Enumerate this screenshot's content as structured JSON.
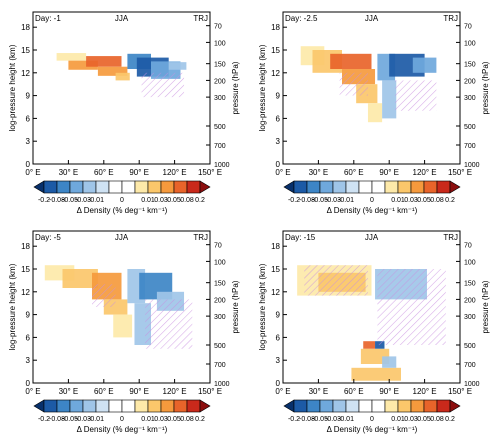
{
  "colorbar": {
    "colors": [
      "#08306b",
      "#1c5aa6",
      "#3d85c6",
      "#6fa8dc",
      "#9fc5e8",
      "#cfe2f3",
      "#ffffff",
      "#ffffff",
      "#fde9a9",
      "#fbc76b",
      "#f59a3d",
      "#e8642a",
      "#c9291b",
      "#8b0e0e"
    ],
    "tick_labels": [
      "-0.2",
      "-0.08",
      "-0.05",
      "-0.03",
      "-0.01",
      "0",
      "0.01",
      "0.03",
      "0.05",
      "0.08",
      "0.2"
    ],
    "label": "Δ Density (% deg⁻¹ km⁻¹)"
  },
  "colors": {
    "hatch": "#c88ee0"
  },
  "chart_data": [
    {
      "type": "heatmap",
      "day_label": "Day: -1",
      "season": "JJA",
      "tag": "TRJ",
      "xlabel": "",
      "ylabel": "log-pressure height (km)",
      "ylabel_right": "pressure (hPa)",
      "xlim": [
        0,
        150
      ],
      "ylim": [
        0,
        20
      ],
      "x_ticks": [
        0,
        30,
        60,
        90,
        120,
        150
      ],
      "x_tick_labels": [
        "0° E",
        "30° E",
        "60° E",
        "90° E",
        "120° E",
        "150° E"
      ],
      "y_ticks": [
        0,
        3,
        6,
        9,
        12,
        15,
        18
      ],
      "y_tick_labels": [
        "0",
        "3",
        "6",
        "9",
        "12",
        "15",
        "18"
      ],
      "p_ticks": [
        0,
        2.5,
        5,
        8.8,
        11,
        13.2,
        16,
        18.2
      ],
      "p_tick_labels": [
        "1000",
        "700",
        "500",
        "300",
        "200",
        "150",
        "100",
        "70"
      ],
      "cells": [
        {
          "x": [
            20,
            45
          ],
          "y": [
            13.6,
            14.6
          ],
          "v": 0.02
        },
        {
          "x": [
            30,
            55
          ],
          "y": [
            12.4,
            13.6
          ],
          "v": 0.05
        },
        {
          "x": [
            45,
            75
          ],
          "y": [
            12.8,
            14.2
          ],
          "v": 0.1
        },
        {
          "x": [
            55,
            80
          ],
          "y": [
            11.6,
            12.8
          ],
          "v": 0.07
        },
        {
          "x": [
            70,
            82
          ],
          "y": [
            11.0,
            12.0
          ],
          "v": 0.03
        },
        {
          "x": [
            80,
            100
          ],
          "y": [
            12.5,
            14.5
          ],
          "v": -0.06
        },
        {
          "x": [
            88,
            115
          ],
          "y": [
            11.5,
            14.0
          ],
          "v": -0.12
        },
        {
          "x": [
            100,
            125
          ],
          "y": [
            11.2,
            13.5
          ],
          "v": -0.05
        },
        {
          "x": [
            115,
            130
          ],
          "y": [
            12.4,
            13.4
          ],
          "v": -0.02
        }
      ],
      "hatch": [
        {
          "x": [
            92,
            128
          ],
          "y": [
            8.8,
            12.0
          ]
        }
      ]
    },
    {
      "type": "heatmap",
      "day_label": "Day: -2.5",
      "season": "JJA",
      "tag": "TRJ",
      "xlabel": "",
      "ylabel": "log-pressure height (km)",
      "ylabel_right": "pressure (hPa)",
      "xlim": [
        0,
        150
      ],
      "ylim": [
        0,
        20
      ],
      "x_ticks": [
        0,
        30,
        60,
        90,
        120,
        150
      ],
      "x_tick_labels": [
        "0° E",
        "30° E",
        "60° E",
        "90° E",
        "120° E",
        "150° E"
      ],
      "y_ticks": [
        0,
        3,
        6,
        9,
        12,
        15,
        18
      ],
      "y_tick_labels": [
        "0",
        "3",
        "6",
        "9",
        "12",
        "15",
        "18"
      ],
      "p_ticks": [
        0,
        2.5,
        5,
        8.8,
        11,
        13.2,
        16,
        18.2
      ],
      "p_tick_labels": [
        "1000",
        "700",
        "500",
        "300",
        "200",
        "150",
        "100",
        "70"
      ],
      "cells": [
        {
          "x": [
            15,
            35
          ],
          "y": [
            13.0,
            15.5
          ],
          "v": 0.02
        },
        {
          "x": [
            25,
            50
          ],
          "y": [
            12.0,
            15.0
          ],
          "v": 0.04
        },
        {
          "x": [
            40,
            75
          ],
          "y": [
            12.5,
            14.5
          ],
          "v": 0.1
        },
        {
          "x": [
            50,
            78
          ],
          "y": [
            10.5,
            12.5
          ],
          "v": 0.06
        },
        {
          "x": [
            62,
            80
          ],
          "y": [
            8.0,
            10.5
          ],
          "v": 0.03
        },
        {
          "x": [
            72,
            84
          ],
          "y": [
            5.5,
            8.0
          ],
          "v": 0.02
        },
        {
          "x": [
            80,
            95
          ],
          "y": [
            11.0,
            14.5
          ],
          "v": -0.04
        },
        {
          "x": [
            90,
            120
          ],
          "y": [
            11.5,
            14.5
          ],
          "v": -0.1
        },
        {
          "x": [
            110,
            130
          ],
          "y": [
            12.0,
            14.0
          ],
          "v": -0.04
        },
        {
          "x": [
            84,
            96
          ],
          "y": [
            6.0,
            11.0
          ],
          "v": -0.02
        }
      ],
      "hatch": [
        {
          "x": [
            48,
            72
          ],
          "y": [
            9.0,
            12.0
          ]
        },
        {
          "x": [
            95,
            130
          ],
          "y": [
            7.0,
            11.0
          ]
        }
      ]
    },
    {
      "type": "heatmap",
      "day_label": "Day: -5",
      "season": "JJA",
      "tag": "TRJ",
      "xlabel": "",
      "ylabel": "log-pressure height (km)",
      "ylabel_right": "pressure (hPa)",
      "xlim": [
        0,
        150
      ],
      "ylim": [
        0,
        20
      ],
      "x_ticks": [
        0,
        30,
        60,
        90,
        120,
        150
      ],
      "x_tick_labels": [
        "0° E",
        "30° E",
        "60° E",
        "90° E",
        "120° E",
        "150° E"
      ],
      "y_ticks": [
        0,
        3,
        6,
        9,
        12,
        15,
        18
      ],
      "y_tick_labels": [
        "0",
        "3",
        "6",
        "9",
        "12",
        "15",
        "18"
      ],
      "p_ticks": [
        0,
        2.5,
        5,
        8.8,
        11,
        13.2,
        16,
        18.2
      ],
      "p_tick_labels": [
        "1000",
        "700",
        "500",
        "300",
        "200",
        "150",
        "100",
        "70"
      ],
      "cells": [
        {
          "x": [
            10,
            35
          ],
          "y": [
            13.5,
            15.5
          ],
          "v": 0.02
        },
        {
          "x": [
            25,
            55
          ],
          "y": [
            12.5,
            15.0
          ],
          "v": 0.04
        },
        {
          "x": [
            50,
            75
          ],
          "y": [
            11.0,
            14.5
          ],
          "v": 0.07
        },
        {
          "x": [
            60,
            80
          ],
          "y": [
            9.0,
            11.0
          ],
          "v": 0.04
        },
        {
          "x": [
            68,
            84
          ],
          "y": [
            6.0,
            9.0
          ],
          "v": 0.02
        },
        {
          "x": [
            80,
            95
          ],
          "y": [
            10.5,
            15.0
          ],
          "v": -0.03
        },
        {
          "x": [
            90,
            118
          ],
          "y": [
            11.0,
            14.5
          ],
          "v": -0.08
        },
        {
          "x": [
            105,
            128
          ],
          "y": [
            9.5,
            12.0
          ],
          "v": -0.03
        },
        {
          "x": [
            86,
            100
          ],
          "y": [
            5.0,
            10.5
          ],
          "v": -0.02
        }
      ],
      "hatch": [
        {
          "x": [
            50,
            70
          ],
          "y": [
            10.0,
            13.0
          ]
        },
        {
          "x": [
            95,
            135
          ],
          "y": [
            4.5,
            11.0
          ]
        }
      ]
    },
    {
      "type": "heatmap",
      "day_label": "Day: -15",
      "season": "JJA",
      "tag": "TRJ",
      "xlabel": "",
      "ylabel": "log-pressure height (km)",
      "ylabel_right": "pressure (hPa)",
      "xlim": [
        0,
        150
      ],
      "ylim": [
        0,
        20
      ],
      "x_ticks": [
        0,
        30,
        60,
        90,
        120,
        150
      ],
      "x_tick_labels": [
        "0° E",
        "30° E",
        "60° E",
        "90° E",
        "120° E",
        "150° E"
      ],
      "y_ticks": [
        0,
        3,
        6,
        9,
        12,
        15,
        18
      ],
      "y_tick_labels": [
        "0",
        "3",
        "6",
        "9",
        "12",
        "15",
        "18"
      ],
      "p_ticks": [
        0,
        2.5,
        5,
        8.8,
        11,
        13.2,
        16,
        18.2
      ],
      "p_tick_labels": [
        "1000",
        "700",
        "500",
        "300",
        "200",
        "150",
        "100",
        "70"
      ],
      "cells": [
        {
          "x": [
            12,
            75
          ],
          "y": [
            11.5,
            15.5
          ],
          "v": 0.02
        },
        {
          "x": [
            30,
            70
          ],
          "y": [
            12.0,
            14.5
          ],
          "v": 0.03
        },
        {
          "x": [
            78,
            122
          ],
          "y": [
            11.0,
            15.0
          ],
          "v": -0.02
        },
        {
          "x": [
            68,
            78
          ],
          "y": [
            4.5,
            5.5
          ],
          "v": 0.1
        },
        {
          "x": [
            78,
            86
          ],
          "y": [
            4.5,
            5.5
          ],
          "v": -0.1
        },
        {
          "x": [
            66,
            90
          ],
          "y": [
            2.5,
            4.5
          ],
          "v": 0.04
        },
        {
          "x": [
            58,
            100
          ],
          "y": [
            0.3,
            2.0
          ],
          "v": 0.03
        },
        {
          "x": [
            84,
            96
          ],
          "y": [
            2.0,
            3.5
          ],
          "v": -0.03
        }
      ],
      "hatch": [
        {
          "x": [
            18,
            72
          ],
          "y": [
            11.5,
            15.5
          ]
        },
        {
          "x": [
            80,
            138
          ],
          "y": [
            5.0,
            15.0
          ]
        }
      ]
    }
  ]
}
